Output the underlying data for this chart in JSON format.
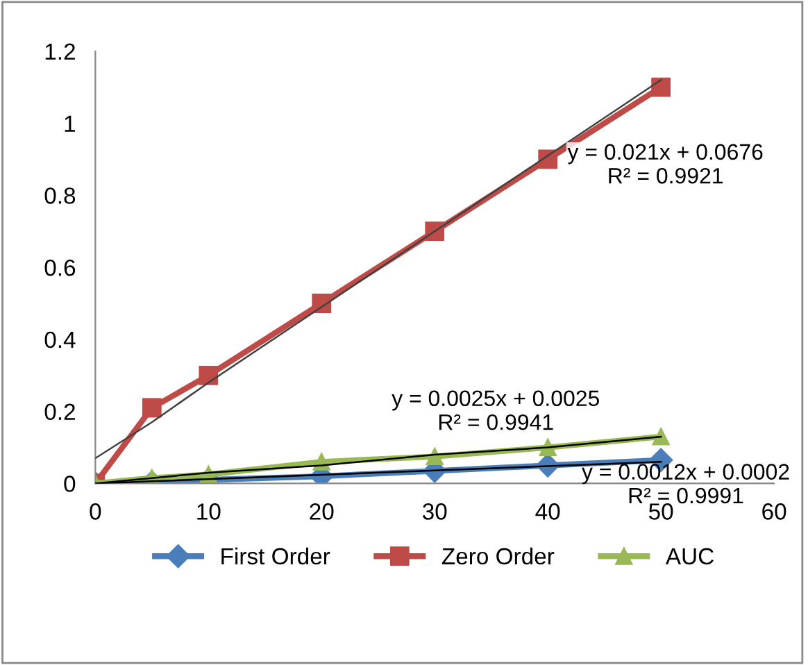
{
  "chart_data": {
    "type": "line",
    "x": [
      0,
      5,
      10,
      20,
      30,
      40,
      50
    ],
    "series": [
      {
        "name": "First Order",
        "color": "#4a7ebb",
        "marker": "diamond",
        "values": [
          0,
          0.003,
          0.01,
          0.02,
          0.035,
          0.05,
          0.065
        ]
      },
      {
        "name": "Zero Order",
        "color": "#be4b48",
        "marker": "square",
        "values": [
          0,
          0.21,
          0.3,
          0.5,
          0.7,
          0.9,
          1.1
        ]
      },
      {
        "name": "AUC",
        "color": "#98b954",
        "marker": "triangle",
        "values": [
          0,
          0.015,
          0.025,
          0.06,
          0.075,
          0.1,
          0.13
        ]
      },
      {
        "type": "line",
        "color": "#404040",
        "marker": "none",
        "values": [
          0.07,
          0.17,
          0.28,
          0.49,
          0.7,
          0.91,
          1.12
        ]
      },
      {
        "type": "line",
        "color": "#000000",
        "marker": "none",
        "values": [
          0,
          0.015,
          0.03,
          0.05,
          0.08,
          0.1,
          0.13
        ]
      },
      {
        "type": "line",
        "color": "#000000",
        "marker": "none",
        "values": [
          0,
          0.006,
          0.012,
          0.024,
          0.036,
          0.048,
          0.06
        ]
      }
    ],
    "xlim": [
      0,
      60
    ],
    "xticks": [
      0,
      10,
      20,
      30,
      40,
      50,
      60
    ],
    "ylim": [
      0,
      1.2
    ],
    "yticks": [
      0,
      0.2,
      0.4,
      0.6,
      0.8,
      1,
      1.2
    ],
    "grid": false,
    "legend": "bottom",
    "line_style": "solid",
    "annotations": [
      "y = 0.021x + 0.0676\nR² = 0.9921",
      "y = 0.0025x + 0.0025\nR² = 0.9941",
      "y = 0.0012x + 0.0002\nR² = 0.9991"
    ]
  }
}
